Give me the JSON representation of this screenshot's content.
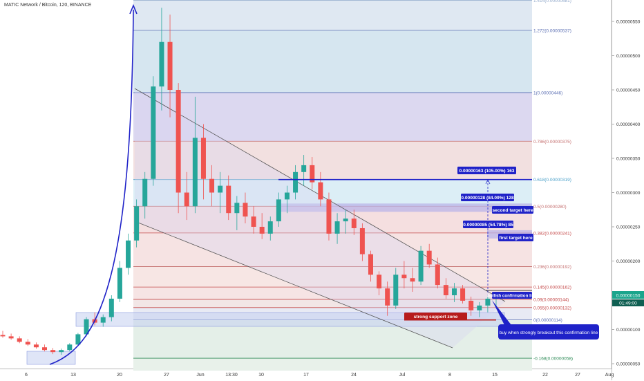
{
  "header": {
    "title": "MATIC Network / Bitcoin, 120, BINANCE"
  },
  "chart_data": {
    "type": "candlestick",
    "title": "MATIC Network / Bitcoin, 120, BINANCE",
    "ylim": [
      5e-07,
      5.8e-06
    ],
    "y_ticks": [
      "0.00000550",
      "0.00000500",
      "0.00000450",
      "0.00000400",
      "0.00000350",
      "0.00000300",
      "0.00000250",
      "0.00000200",
      "0.00000150",
      "0.00000100",
      "0.00000050"
    ],
    "x_ticks": [
      "6",
      "13",
      "20",
      "27",
      "Jun",
      "13:30",
      "10",
      "17",
      "24",
      "Jul",
      "8",
      "15",
      "22",
      "27",
      "Aug"
    ],
    "current_price": "0.00000150",
    "countdown": "01:49:00",
    "fib_levels": [
      {
        "ratio": 1.414,
        "label": "1.414(0.00000581)",
        "price": 5.81e-06,
        "color": "#8fa7c9"
      },
      {
        "ratio": 1.272,
        "label": "1.272(0.00000537)",
        "price": 5.37e-06,
        "color": "#5b6fb3"
      },
      {
        "ratio": 1,
        "label": "1(0.00000446)",
        "price": 4.46e-06,
        "color": "#5b6fb3"
      },
      {
        "ratio": 0.786,
        "label": "0.786(0.00000375)",
        "price": 3.75e-06,
        "color": "#c46e6e"
      },
      {
        "ratio": 0.618,
        "label": "0.618(0.00000319)",
        "price": 3.19e-06,
        "color": "#4aa0c9"
      },
      {
        "ratio": 0.5,
        "label": "0.5(0.00000280)",
        "price": 2.8e-06,
        "color": "#c46e6e"
      },
      {
        "ratio": 0.382,
        "label": "0.382(0.00000241)",
        "price": 2.41e-06,
        "color": "#c44848"
      },
      {
        "ratio": 0.236,
        "label": "0.236(0.00000192)",
        "price": 1.92e-06,
        "color": "#c46e6e"
      },
      {
        "ratio": 0.145,
        "label": "0.145(0.00000162)",
        "price": 1.62e-06,
        "color": "#c44848"
      },
      {
        "ratio": 0.09,
        "label": "0.09(0.00000144)",
        "price": 1.44e-06,
        "color": "#c44848"
      },
      {
        "ratio": 0.055,
        "label": "0.055(0.00000132)",
        "price": 1.32e-06,
        "color": "#c44848"
      },
      {
        "ratio": 0,
        "label": "0(0.00000114)",
        "price": 1.14e-06,
        "color": "#5b6fb3"
      },
      {
        "ratio": -0.168,
        "label": "-0.168(0.00000058)",
        "price": 5.8e-07,
        "color": "#2e8b57"
      }
    ],
    "candles": [
      {
        "o": 9.2e-07,
        "h": 9.8e-07,
        "l": 8.8e-07,
        "c": 9e-07
      },
      {
        "o": 9e-07,
        "h": 9.4e-07,
        "l": 8.5e-07,
        "c": 8.7e-07
      },
      {
        "o": 8.7e-07,
        "h": 9e-07,
        "l": 8e-07,
        "c": 8.2e-07
      },
      {
        "o": 8.2e-07,
        "h": 8.6e-07,
        "l": 7.6e-07,
        "c": 7.8e-07
      },
      {
        "o": 7.8e-07,
        "h": 8.1e-07,
        "l": 7.2e-07,
        "c": 7.4e-07
      },
      {
        "o": 7.4e-07,
        "h": 7.8e-07,
        "l": 6.8e-07,
        "c": 7e-07
      },
      {
        "o": 7e-07,
        "h": 7.3e-07,
        "l": 6.4e-07,
        "c": 6.7e-07
      },
      {
        "o": 6.7e-07,
        "h": 7.2e-07,
        "l": 6.3e-07,
        "c": 7e-07
      },
      {
        "o": 7e-07,
        "h": 8e-07,
        "l": 6.8e-07,
        "c": 7.8e-07
      },
      {
        "o": 7.8e-07,
        "h": 9.5e-07,
        "l": 7.6e-07,
        "c": 9.3e-07
      },
      {
        "o": 9.3e-07,
        "h": 1.18e-06,
        "l": 9e-07,
        "c": 1.15e-06
      },
      {
        "o": 1.15e-06,
        "h": 1.25e-06,
        "l": 1.06e-06,
        "c": 1.1e-06
      },
      {
        "o": 1.1e-06,
        "h": 1.22e-06,
        "l": 1.04e-06,
        "c": 1.18e-06
      },
      {
        "o": 1.18e-06,
        "h": 1.5e-06,
        "l": 1.12e-06,
        "c": 1.45e-06
      },
      {
        "o": 1.45e-06,
        "h": 2e-06,
        "l": 1.4e-06,
        "c": 1.9e-06
      },
      {
        "o": 1.9e-06,
        "h": 2.4e-06,
        "l": 1.8e-06,
        "c": 2.3e-06
      },
      {
        "o": 2.3e-06,
        "h": 2.9e-06,
        "l": 2.2e-06,
        "c": 2.8e-06
      },
      {
        "o": 2.8e-06,
        "h": 3.3e-06,
        "l": 2.62e-06,
        "c": 3.2e-06
      },
      {
        "o": 3.2e-06,
        "h": 4.7e-06,
        "l": 3.1e-06,
        "c": 4.55e-06
      },
      {
        "o": 4.55e-06,
        "h": 5.7e-06,
        "l": 4.2e-06,
        "c": 5.2e-06
      },
      {
        "o": 5.2e-06,
        "h": 5.6e-06,
        "l": 4.1e-06,
        "c": 4.5e-06
      },
      {
        "o": 4.5e-06,
        "h": 4.6e-06,
        "l": 2.7e-06,
        "c": 3e-06
      },
      {
        "o": 3e-06,
        "h": 3.3e-06,
        "l": 2.6e-06,
        "c": 2.8e-06
      },
      {
        "o": 2.8e-06,
        "h": 4.4e-06,
        "l": 2.7e-06,
        "c": 3.8e-06
      },
      {
        "o": 3.8e-06,
        "h": 4e-06,
        "l": 2.9e-06,
        "c": 3.2e-06
      },
      {
        "o": 3.2e-06,
        "h": 3.4e-06,
        "l": 2.8e-06,
        "c": 3e-06
      },
      {
        "o": 3e-06,
        "h": 3.3e-06,
        "l": 2.7e-06,
        "c": 3.1e-06
      },
      {
        "o": 3.1e-06,
        "h": 3.25e-06,
        "l": 2.6e-06,
        "c": 2.7e-06
      },
      {
        "o": 2.7e-06,
        "h": 2.95e-06,
        "l": 2.45e-06,
        "c": 2.85e-06
      },
      {
        "o": 2.85e-06,
        "h": 3e-06,
        "l": 2.55e-06,
        "c": 2.65e-06
      },
      {
        "o": 2.65e-06,
        "h": 2.8e-06,
        "l": 2.4e-06,
        "c": 2.5e-06
      },
      {
        "o": 2.5e-06,
        "h": 2.7e-06,
        "l": 2.32e-06,
        "c": 2.4e-06
      },
      {
        "o": 2.4e-06,
        "h": 2.65e-06,
        "l": 2.3e-06,
        "c": 2.58e-06
      },
      {
        "o": 2.58e-06,
        "h": 3e-06,
        "l": 2.5e-06,
        "c": 2.9e-06
      },
      {
        "o": 2.9e-06,
        "h": 3.1e-06,
        "l": 2.7e-06,
        "c": 3e-06
      },
      {
        "o": 3e-06,
        "h": 3.4e-06,
        "l": 2.9e-06,
        "c": 3.3e-06
      },
      {
        "o": 3.3e-06,
        "h": 3.55e-06,
        "l": 3.1e-06,
        "c": 3.4e-06
      },
      {
        "o": 3.4e-06,
        "h": 3.52e-06,
        "l": 3.05e-06,
        "c": 3.15e-06
      },
      {
        "o": 3.15e-06,
        "h": 3.3e-06,
        "l": 2.8e-06,
        "c": 2.9e-06
      },
      {
        "o": 2.9e-06,
        "h": 3e-06,
        "l": 2.3e-06,
        "c": 2.4e-06
      },
      {
        "o": 2.4e-06,
        "h": 2.7e-06,
        "l": 2.25e-06,
        "c": 2.58e-06
      },
      {
        "o": 2.58e-06,
        "h": 2.75e-06,
        "l": 2.4e-06,
        "c": 2.62e-06
      },
      {
        "o": 2.62e-06,
        "h": 2.75e-06,
        "l": 2.38e-06,
        "c": 2.48e-06
      },
      {
        "o": 2.48e-06,
        "h": 2.55e-06,
        "l": 2e-06,
        "c": 2.1e-06
      },
      {
        "o": 2.1e-06,
        "h": 2.15e-06,
        "l": 1.7e-06,
        "c": 1.8e-06
      },
      {
        "o": 1.8e-06,
        "h": 1.85e-06,
        "l": 1.5e-06,
        "c": 1.6e-06
      },
      {
        "o": 1.6e-06,
        "h": 1.7e-06,
        "l": 1.2e-06,
        "c": 1.35e-06
      },
      {
        "o": 1.35e-06,
        "h": 1.9e-06,
        "l": 1.3e-06,
        "c": 1.8e-06
      },
      {
        "o": 1.8e-06,
        "h": 2e-06,
        "l": 1.6e-06,
        "c": 1.75e-06
      },
      {
        "o": 1.75e-06,
        "h": 1.9e-06,
        "l": 1.55e-06,
        "c": 1.7e-06
      },
      {
        "o": 1.7e-06,
        "h": 2.22e-06,
        "l": 1.65e-06,
        "c": 2.15e-06
      },
      {
        "o": 2.15e-06,
        "h": 2.25e-06,
        "l": 1.9e-06,
        "c": 1.95e-06
      },
      {
        "o": 1.95e-06,
        "h": 2.05e-06,
        "l": 1.6e-06,
        "c": 1.65e-06
      },
      {
        "o": 1.65e-06,
        "h": 1.75e-06,
        "l": 1.45e-06,
        "c": 1.5e-06
      },
      {
        "o": 1.5e-06,
        "h": 1.68e-06,
        "l": 1.4e-06,
        "c": 1.6e-06
      },
      {
        "o": 1.6e-06,
        "h": 1.65e-06,
        "l": 1.38e-06,
        "c": 1.42e-06
      },
      {
        "o": 1.42e-06,
        "h": 1.48e-06,
        "l": 1.2e-06,
        "c": 1.28e-06
      },
      {
        "o": 1.28e-06,
        "h": 1.4e-06,
        "l": 1.18e-06,
        "c": 1.35e-06
      },
      {
        "o": 1.35e-06,
        "h": 1.48e-06,
        "l": 1.25e-06,
        "c": 1.45e-06
      },
      {
        "o": 1.45e-06,
        "h": 1.55e-06,
        "l": 1.35e-06,
        "c": 1.5e-06
      }
    ]
  },
  "annotations": {
    "target_105": "0.00000163 (105.00%) 163",
    "target_84": "0.00000128 (84.09%) 128",
    "target_54": "0.00000085 (54.78%) 85",
    "second_target": "second target here",
    "first_target": "first target here",
    "bullish_line": "bullish confirmation line",
    "support_zone": "strong support zone",
    "buy_note": "buy when strongly breakout this confirmation line"
  },
  "colors": {
    "up": "#26a69a",
    "down": "#ef5350",
    "accent": "#1f22c8",
    "support": "#b71c1c",
    "price_tag": "#1aa58c"
  }
}
